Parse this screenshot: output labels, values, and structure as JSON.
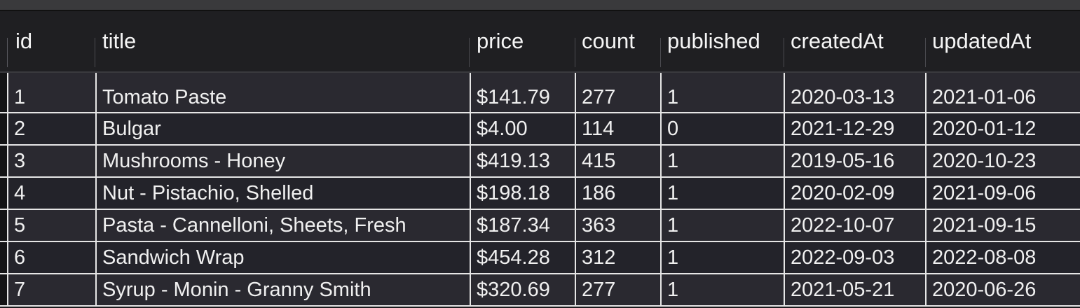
{
  "table": {
    "columns": [
      "id",
      "title",
      "price",
      "count",
      "published",
      "createdAt",
      "updatedAt"
    ],
    "rows": [
      [
        "1",
        "Tomato Paste",
        "$141.79",
        "277",
        "1",
        "2020-03-13",
        "2021-01-06"
      ],
      [
        "2",
        "Bulgar",
        "$4.00",
        "114",
        "0",
        "2021-12-29",
        "2020-01-12"
      ],
      [
        "3",
        "Mushrooms - Honey",
        "$419.13",
        "415",
        "1",
        "2019-05-16",
        "2020-10-23"
      ],
      [
        "4",
        "Nut - Pistachio, Shelled",
        "$198.18",
        "186",
        "1",
        "2020-02-09",
        "2021-09-06"
      ],
      [
        "5",
        "Pasta - Cannelloni, Sheets, Fresh",
        "$187.34",
        "363",
        "1",
        "2022-10-07",
        "2021-09-15"
      ],
      [
        "6",
        "Sandwich Wrap",
        "$454.28",
        "312",
        "1",
        "2022-09-03",
        "2022-08-08"
      ],
      [
        "7",
        "Syrup - Monin - Granny Smith",
        "$320.69",
        "277",
        "1",
        "2021-05-21",
        "2020-06-26"
      ]
    ]
  }
}
